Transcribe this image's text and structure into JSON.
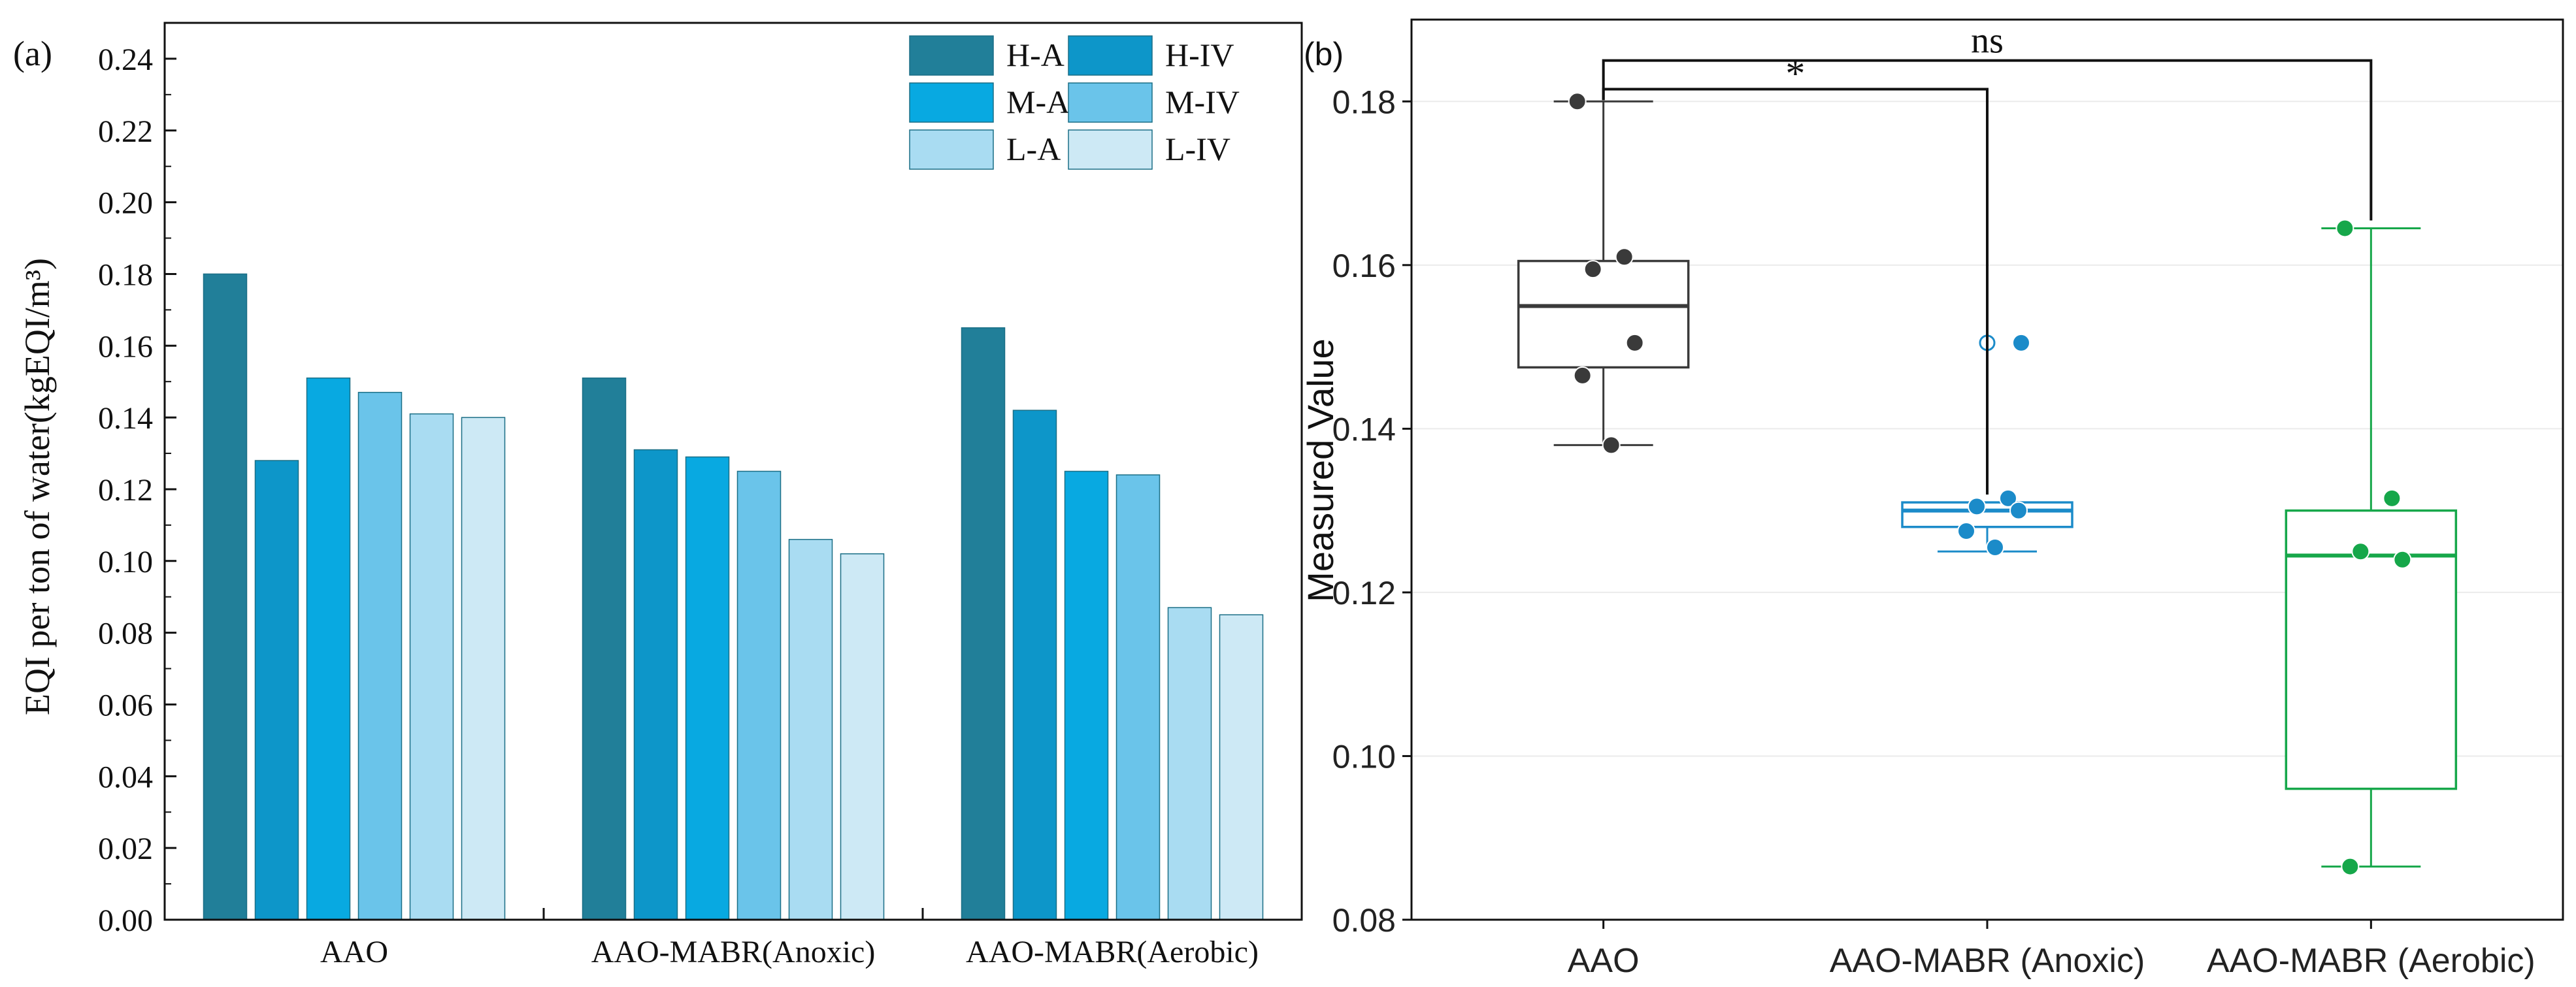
{
  "chart_data": [
    {
      "panel_label": "(a)",
      "type": "bar",
      "title": "",
      "xlabel": "",
      "ylabel": "EQI per ton of water(kgEQI/m³)",
      "categories": [
        "AAO",
        "AAO-MABR(Anoxic)",
        "AAO-MABR(Aerobic)"
      ],
      "ylim": [
        0,
        0.25
      ],
      "yticks": [
        "0.00",
        "0.02",
        "0.04",
        "0.06",
        "0.08",
        "0.10",
        "0.12",
        "0.14",
        "0.16",
        "0.18",
        "0.20",
        "0.22",
        "0.24"
      ],
      "legend_position": "top-right",
      "series": [
        {
          "name": "H-A",
          "color": "#217f99",
          "values": [
            0.18,
            0.151,
            0.165
          ]
        },
        {
          "name": "H-IV",
          "color": "#0d96c9",
          "values": [
            0.128,
            0.131,
            0.142
          ]
        },
        {
          "name": "M-A",
          "color": "#08a9e1",
          "values": [
            0.151,
            0.129,
            0.125
          ]
        },
        {
          "name": "M-IV",
          "color": "#6ac4ea",
          "values": [
            0.147,
            0.125,
            0.124
          ]
        },
        {
          "name": "L-A",
          "color": "#a9dcf2",
          "values": [
            0.141,
            0.106,
            0.087
          ]
        },
        {
          "name": "L-IV",
          "color": "#cde9f5",
          "values": [
            0.14,
            0.102,
            0.085
          ]
        }
      ]
    },
    {
      "panel_label": "(b)",
      "type": "box",
      "title": "",
      "xlabel": "",
      "ylabel": "Measured Value",
      "categories": [
        "AAO",
        "AAO-MABR (Anoxic)",
        "AAO-MABR (Aerobic)"
      ],
      "ylim": [
        0.08,
        0.19
      ],
      "yticks": [
        "0.08",
        "0.10",
        "0.12",
        "0.14",
        "0.16",
        "0.18"
      ],
      "groups": [
        {
          "name": "AAO",
          "color": "#3a3a3a",
          "min": 0.138,
          "q1": 0.1475,
          "median": 0.155,
          "q3": 0.1605,
          "max": 0.18,
          "points": [
            0.18,
            0.161,
            0.1595,
            0.1505,
            0.1465,
            0.138
          ],
          "outliers": []
        },
        {
          "name": "AAO-MABR (Anoxic)",
          "color": "#1b8bc9",
          "min": 0.125,
          "q1": 0.128,
          "median": 0.13,
          "q3": 0.131,
          "max": 0.131,
          "points": [
            0.1505,
            0.1315,
            0.1305,
            0.13,
            0.1275,
            0.1255
          ],
          "outliers": [
            0.1505
          ]
        },
        {
          "name": "AAO-MABR (Aerobic)",
          "color": "#16a74a",
          "min": 0.0865,
          "q1": 0.096,
          "median": 0.1245,
          "q3": 0.13,
          "max": 0.1645,
          "points": [
            0.1645,
            0.1315,
            0.125,
            0.124,
            0.0865
          ],
          "outliers": []
        }
      ],
      "annotations": [
        {
          "text": "*",
          "from": "AAO",
          "to": "AAO-MABR (Anoxic)",
          "level": 0.1815
        },
        {
          "text": "ns",
          "from": "AAO",
          "to": "AAO-MABR (Aerobic)",
          "level": 0.185
        }
      ]
    }
  ]
}
